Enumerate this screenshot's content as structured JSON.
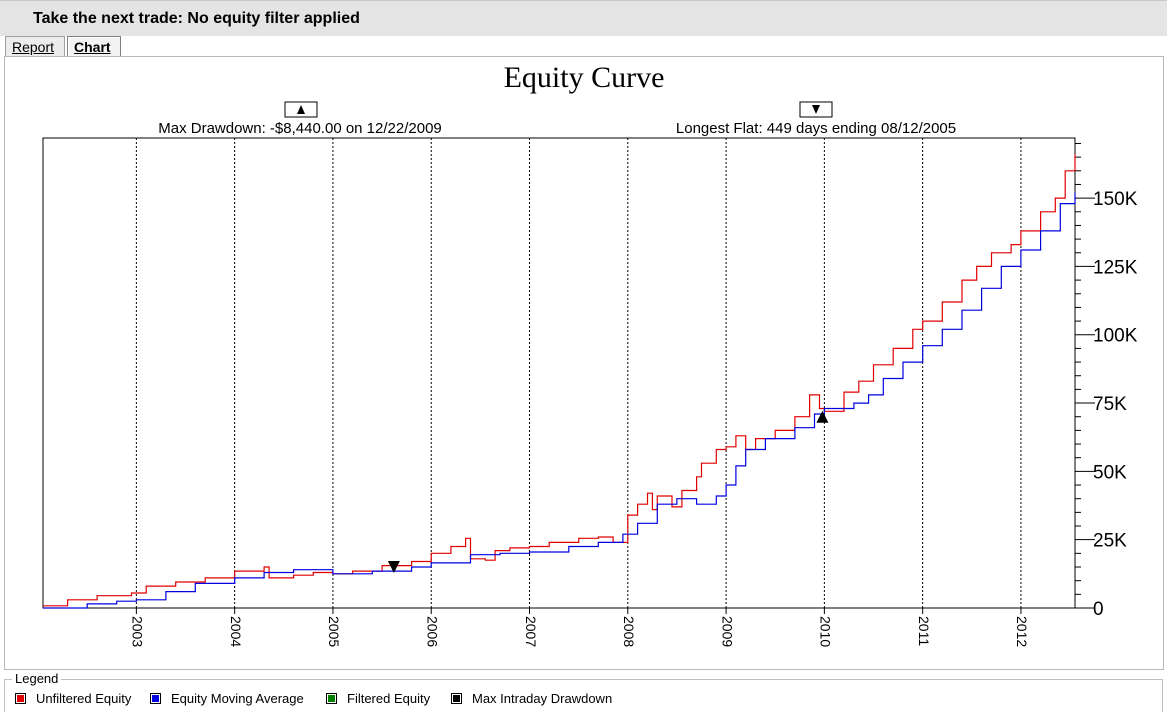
{
  "window": {
    "title": "Take the next trade: No equity filter applied"
  },
  "tabs": [
    {
      "label": "Report"
    },
    {
      "label": "Chart"
    }
  ],
  "legend": {
    "title": "Legend",
    "items": [
      {
        "label": "Unfiltered Equity",
        "color": "#e00000"
      },
      {
        "label": "Equity Moving Average",
        "color": "#0000e0"
      },
      {
        "label": "Filtered Equity",
        "color": "#008000"
      },
      {
        "label": "Max Intraday Drawdown",
        "color": "#000000"
      }
    ]
  },
  "chart_data": {
    "type": "line",
    "title": "Equity Curve",
    "annotations": {
      "max_drawdown": "Max Drawdown: -$8,440.00 on 12/22/2009",
      "longest_flat": "Longest Flat: 449 days ending 08/12/2005"
    },
    "x_tick_labels": [
      "2003",
      "2004",
      "2005",
      "2006",
      "2007",
      "2008",
      "2009",
      "2010",
      "2011",
      "2012"
    ],
    "y_tick_labels": [
      "0",
      "25K",
      "50K",
      "75K",
      "100K",
      "125K",
      "150K"
    ],
    "ylim": [
      0,
      172000
    ],
    "xlim": [
      2002.05,
      2012.55
    ],
    "grid": "vertical dashed at year boundaries",
    "markers": [
      {
        "type": "down-triangle",
        "x": 2005.62,
        "y": 15000
      },
      {
        "type": "up-triangle",
        "x": 2009.98,
        "y": 70000
      }
    ],
    "series": [
      {
        "name": "Unfiltered Equity",
        "color": "#e00000",
        "x": [
          2002.05,
          2002.3,
          2002.6,
          2002.95,
          2003.1,
          2003.4,
          2003.7,
          2004.0,
          2004.3,
          2004.35,
          2004.6,
          2004.8,
          2005.0,
          2005.2,
          2005.5,
          2005.8,
          2006.0,
          2006.2,
          2006.35,
          2006.4,
          2006.55,
          2006.65,
          2006.8,
          2007.0,
          2007.2,
          2007.5,
          2007.7,
          2007.85,
          2008.0,
          2008.1,
          2008.2,
          2008.25,
          2008.3,
          2008.45,
          2008.55,
          2008.7,
          2008.75,
          2008.9,
          2009.0,
          2009.1,
          2009.2,
          2009.3,
          2009.5,
          2009.7,
          2009.85,
          2009.95,
          2010.0,
          2010.2,
          2010.35,
          2010.5,
          2010.7,
          2010.9,
          2011.0,
          2011.2,
          2011.4,
          2011.55,
          2011.7,
          2011.9,
          2012.0,
          2012.2,
          2012.35,
          2012.45,
          2012.55
        ],
        "y": [
          800,
          3000,
          4500,
          5500,
          8000,
          9500,
          11000,
          13500,
          15000,
          11000,
          12000,
          13000,
          12500,
          13500,
          15500,
          17000,
          20000,
          22500,
          25500,
          18000,
          17500,
          21000,
          22000,
          22500,
          24000,
          25500,
          26000,
          24000,
          34000,
          38000,
          42000,
          36000,
          41000,
          37000,
          43000,
          48000,
          53000,
          58000,
          59000,
          63000,
          58000,
          62000,
          65000,
          70000,
          78000,
          73000,
          72000,
          79000,
          83000,
          89000,
          95000,
          102000,
          105000,
          112000,
          120000,
          125000,
          130000,
          133000,
          138000,
          145000,
          150000,
          160000,
          166000
        ]
      },
      {
        "name": "Equity Moving Average",
        "color": "#0000e0",
        "x": [
          2002.05,
          2002.5,
          2002.8,
          2003.0,
          2003.3,
          2003.6,
          2004.0,
          2004.3,
          2004.6,
          2005.0,
          2005.4,
          2005.8,
          2006.0,
          2006.4,
          2006.7,
          2007.0,
          2007.4,
          2007.7,
          2007.95,
          2008.1,
          2008.3,
          2008.5,
          2008.7,
          2008.9,
          2009.0,
          2009.1,
          2009.2,
          2009.4,
          2009.7,
          2009.9,
          2010.0,
          2010.3,
          2010.45,
          2010.6,
          2010.8,
          2011.0,
          2011.2,
          2011.4,
          2011.6,
          2011.8,
          2012.0,
          2012.2,
          2012.4,
          2012.55
        ],
        "y": [
          0,
          1500,
          2500,
          3000,
          6000,
          9000,
          11000,
          13000,
          14000,
          12500,
          13500,
          15000,
          16500,
          19500,
          20000,
          20500,
          22500,
          24000,
          27000,
          31000,
          38000,
          40000,
          38000,
          41000,
          45000,
          52000,
          58000,
          62000,
          66000,
          71000,
          73000,
          75000,
          78000,
          84000,
          90000,
          96000,
          102000,
          109000,
          117000,
          125000,
          131000,
          138000,
          148000,
          152000
        ]
      }
    ]
  }
}
